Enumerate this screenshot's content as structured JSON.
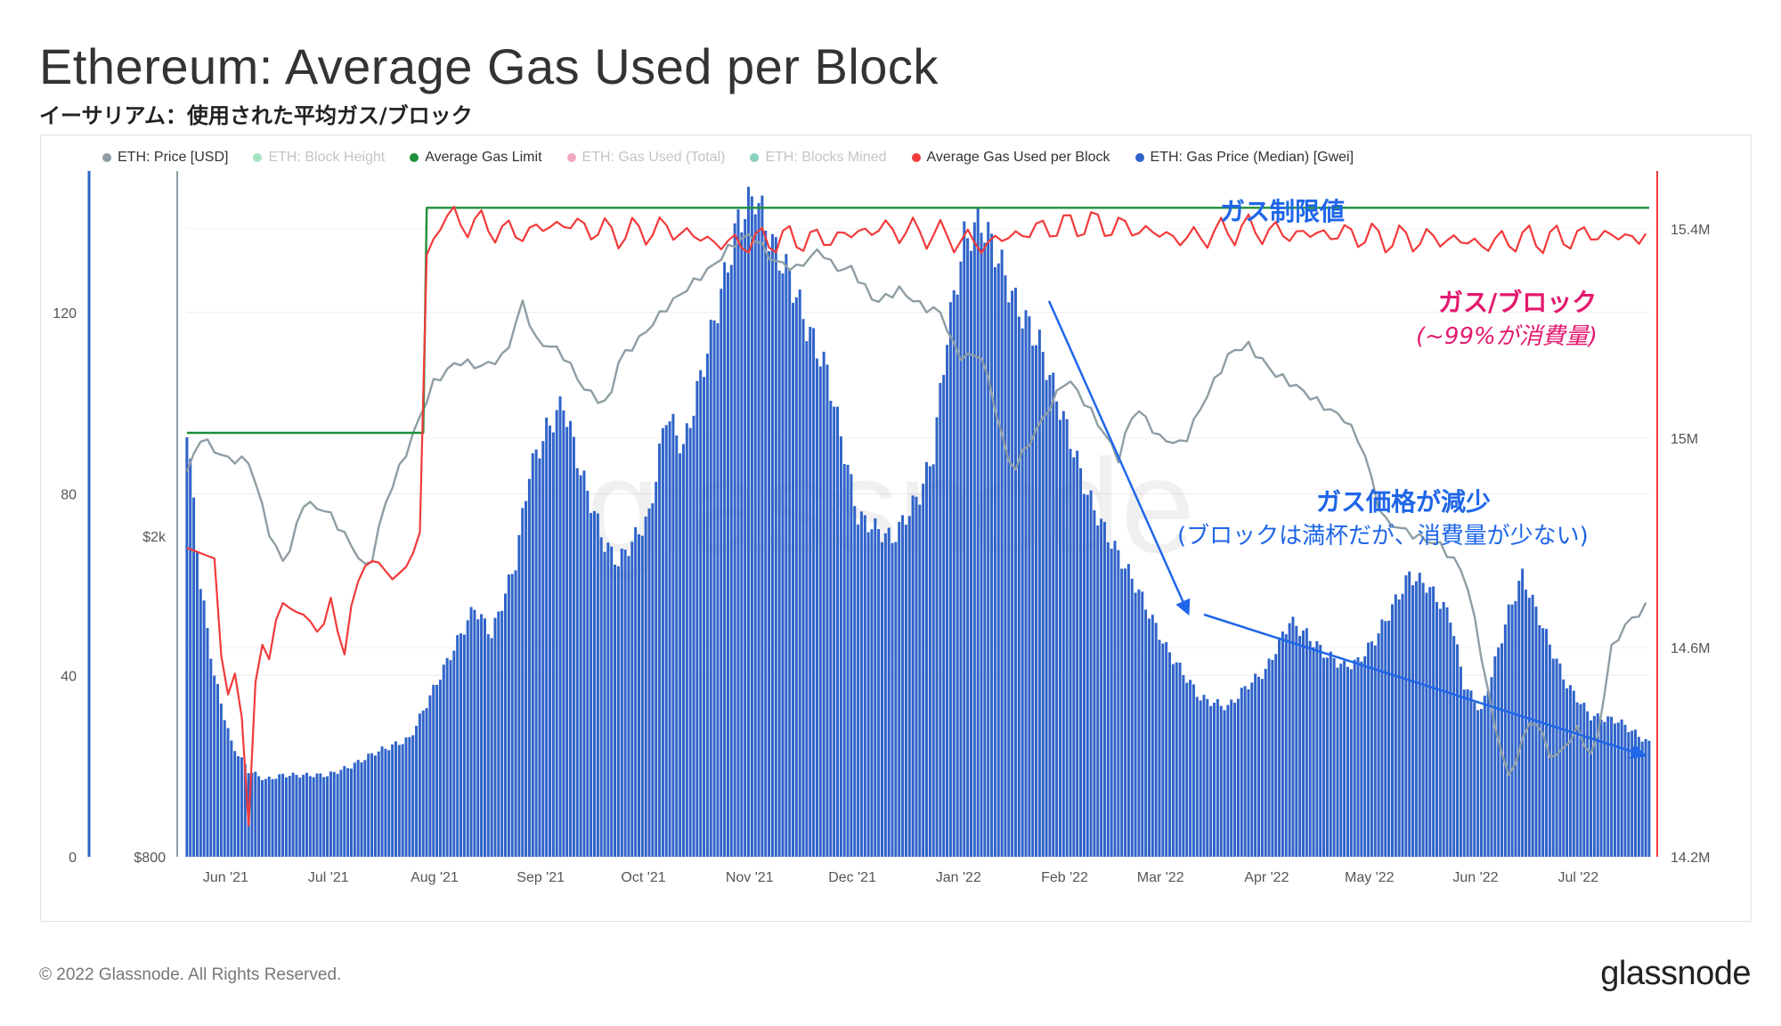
{
  "title": "Ethereum: Average Gas Used per Block",
  "subtitle": "イーサリアム：使用された平均ガス/ブロック",
  "footer": "© 2022 Glassnode. All Rights Reserved.",
  "brand": "glassnode",
  "watermark": "glassnode",
  "colors": {
    "price": "#8e9ea4",
    "block_height": "#5ad18f",
    "gas_limit": "#1e8f3a",
    "gas_used_total": "#e8608a",
    "blocks_mined": "#26a98a",
    "gas_used_per_block": "#f23a3a",
    "gas_price": "#2f63c9",
    "annotation_blue": "#1f66e8",
    "annotation_pink": "#e3196f"
  },
  "legend": [
    {
      "label": "ETH: Price [USD]",
      "color": "#8e9ea4",
      "active": true
    },
    {
      "label": "ETH: Block Height",
      "color": "#5ad18f",
      "active": false
    },
    {
      "label": "Average Gas Limit",
      "color": "#1e8f3a",
      "active": true
    },
    {
      "label": "ETH: Gas Used (Total)",
      "color": "#e8608a",
      "active": false
    },
    {
      "label": "ETH: Blocks Mined",
      "color": "#26a98a",
      "active": false
    },
    {
      "label": "Average Gas Used per Block",
      "color": "#f23a3a",
      "active": true
    },
    {
      "label": "ETH: Gas Price (Median) [Gwei]",
      "color": "#2f63c9",
      "active": true
    }
  ],
  "annotations": {
    "gas_limit": "ガス制限値",
    "gas_per_block": "ガス/ブロック",
    "gas_per_block_sub": "(~99%が消費量)",
    "gas_price_fall": "ガス価格が減少",
    "gas_price_fall_sub": "(ブロックは満杯だが、消費量が少ない)"
  },
  "chart_data": {
    "type": "line",
    "x_axis": {
      "type": "date",
      "range": [
        "2021-05-28",
        "2022-07-29"
      ],
      "ticks": [
        "Jun '21",
        "Jul '21",
        "Aug '21",
        "Sep '21",
        "Oct '21",
        "Nov '21",
        "Dec '21",
        "Jan '22",
        "Feb '22",
        "Mar '22",
        "Apr '22",
        "May '22",
        "Jun '22",
        "Jul '22"
      ]
    },
    "axes": {
      "gas_price_gwei": {
        "position": "left-outer",
        "ticks": [
          "0",
          "40",
          "80",
          "120"
        ],
        "ylim": [
          0,
          150
        ]
      },
      "price_usd": {
        "position": "left-inner",
        "scale": "log",
        "ticks": [
          "$800",
          "$2k"
        ],
        "ylim": [
          800,
          5600
        ]
      },
      "gas_per_block": {
        "position": "right",
        "ticks": [
          "14.2M",
          "14.6M",
          "15M",
          "15.4M"
        ],
        "ylim": [
          14200000,
          15500000
        ]
      }
    },
    "grid": true,
    "legend_position": "top",
    "series": [
      {
        "name": "ETH: Price [USD]",
        "axis": "price_usd",
        "kind": "line",
        "x": [
          "2021-05-28",
          "2021-06-01",
          "2021-06-08",
          "2021-06-15",
          "2021-06-22",
          "2021-06-26",
          "2021-07-01",
          "2021-07-08",
          "2021-07-15",
          "2021-07-20",
          "2021-07-25",
          "2021-08-01",
          "2021-08-08",
          "2021-08-15",
          "2021-08-22",
          "2021-08-29",
          "2021-09-03",
          "2021-09-07",
          "2021-09-14",
          "2021-09-21",
          "2021-09-28",
          "2021-10-01",
          "2021-10-08",
          "2021-10-15",
          "2021-10-22",
          "2021-10-29",
          "2021-11-03",
          "2021-11-09",
          "2021-11-15",
          "2021-11-22",
          "2021-11-29",
          "2021-12-03",
          "2021-12-08",
          "2021-12-15",
          "2021-12-22",
          "2021-12-29",
          "2022-01-03",
          "2022-01-08",
          "2022-01-15",
          "2022-01-22",
          "2022-01-24",
          "2022-02-01",
          "2022-02-09",
          "2022-02-15",
          "2022-02-24",
          "2022-03-01",
          "2022-03-08",
          "2022-03-15",
          "2022-03-22",
          "2022-03-29",
          "2022-04-03",
          "2022-04-10",
          "2022-04-18",
          "2022-04-25",
          "2022-05-01",
          "2022-05-06",
          "2022-05-12",
          "2022-05-17",
          "2022-05-22",
          "2022-05-29",
          "2022-06-05",
          "2022-06-13",
          "2022-06-18",
          "2022-06-25",
          "2022-07-01",
          "2022-07-08",
          "2022-07-13",
          "2022-07-18",
          "2022-07-22",
          "2022-07-29"
        ],
        "values": [
          2400,
          2650,
          2500,
          2480,
          1950,
          1850,
          2200,
          2150,
          1950,
          1800,
          2200,
          2600,
          3100,
          3300,
          3250,
          3350,
          3900,
          3500,
          3400,
          3050,
          2900,
          3300,
          3550,
          3850,
          4100,
          4350,
          4600,
          4750,
          4400,
          4300,
          4550,
          4300,
          4300,
          3900,
          4050,
          3850,
          3800,
          3350,
          3350,
          2550,
          2400,
          2750,
          3150,
          2900,
          2500,
          2900,
          2650,
          2600,
          3000,
          3400,
          3450,
          3200,
          3050,
          2900,
          2800,
          2600,
          2100,
          2050,
          2000,
          1950,
          1800,
          1200,
          1000,
          1200,
          1050,
          1150,
          1050,
          1450,
          1550,
          1650
        ]
      },
      {
        "name": "Average Gas Limit",
        "axis": "gas_per_block",
        "kind": "step",
        "x": [
          "2021-05-28",
          "2021-08-05",
          "2021-08-06",
          "2022-07-29"
        ],
        "values": [
          15010000,
          15010000,
          15440000,
          15440000
        ]
      },
      {
        "name": "Average Gas Used per Block",
        "axis": "gas_per_block",
        "kind": "line",
        "x": [
          "2021-05-28",
          "2021-06-01",
          "2021-06-05",
          "2021-06-08",
          "2021-06-12",
          "2021-06-15",
          "2021-06-18",
          "2021-06-20",
          "2021-06-24",
          "2021-06-28",
          "2021-07-02",
          "2021-07-06",
          "2021-07-10",
          "2021-07-12",
          "2021-07-15",
          "2021-07-18",
          "2021-07-22",
          "2021-07-27",
          "2021-08-01",
          "2021-08-04",
          "2021-08-06",
          "2021-08-10",
          "2021-08-20",
          "2021-09-01",
          "2021-09-15",
          "2021-10-01",
          "2021-10-15",
          "2021-11-01",
          "2021-11-15",
          "2021-12-01",
          "2021-12-15",
          "2022-01-01",
          "2022-01-15",
          "2022-02-01",
          "2022-02-15",
          "2022-03-01",
          "2022-03-15",
          "2022-04-01",
          "2022-04-15",
          "2022-05-01",
          "2022-05-15",
          "2022-06-01",
          "2022-06-10",
          "2022-06-20",
          "2022-07-01",
          "2022-07-15",
          "2022-07-25",
          "2022-07-29"
        ],
        "values": [
          14790000,
          14780000,
          14770000,
          14490000,
          14570000,
          14260000,
          14670000,
          14540000,
          14690000,
          14670000,
          14660000,
          14620000,
          14720000,
          14540000,
          14680000,
          14750000,
          14770000,
          14730000,
          14760000,
          14820000,
          15350000,
          15420000,
          15410000,
          15390000,
          15410000,
          15390000,
          15400000,
          15370000,
          15380000,
          15380000,
          15400000,
          15390000,
          15370000,
          15400000,
          15410000,
          15400000,
          15380000,
          15400000,
          15390000,
          15390000,
          15380000,
          15380000,
          15370000,
          15380000,
          15380000,
          15390000,
          15380000,
          15400000
        ]
      },
      {
        "name": "ETH: Gas Price (Median) [Gwei]",
        "axis": "gas_price_gwei",
        "kind": "bar",
        "x": [
          "2021-05-28",
          "2021-06-01",
          "2021-06-05",
          "2021-06-10",
          "2021-06-15",
          "2021-06-20",
          "2021-06-25",
          "2021-07-01",
          "2021-07-08",
          "2021-07-15",
          "2021-07-22",
          "2021-08-01",
          "2021-08-10",
          "2021-08-20",
          "2021-08-25",
          "2021-09-01",
          "2021-09-05",
          "2021-09-10",
          "2021-09-15",
          "2021-09-20",
          "2021-09-27",
          "2021-10-01",
          "2021-10-10",
          "2021-10-15",
          "2021-10-20",
          "2021-10-28",
          "2021-11-05",
          "2021-11-10",
          "2021-11-15",
          "2021-11-20",
          "2021-11-25",
          "2021-12-01",
          "2021-12-10",
          "2021-12-20",
          "2021-12-28",
          "2022-01-01",
          "2022-01-05",
          "2022-01-10",
          "2022-01-15",
          "2022-01-20",
          "2022-01-25",
          "2022-02-01",
          "2022-02-10",
          "2022-02-15",
          "2022-02-20",
          "2022-03-01",
          "2022-03-10",
          "2022-03-20",
          "2022-03-28",
          "2022-04-03",
          "2022-04-08",
          "2022-04-15",
          "2022-04-20",
          "2022-04-25",
          "2022-05-01",
          "2022-05-05",
          "2022-05-10",
          "2022-05-15",
          "2022-05-20",
          "2022-05-25",
          "2022-06-01",
          "2022-06-05",
          "2022-06-10",
          "2022-06-18",
          "2022-06-22",
          "2022-07-01",
          "2022-07-05",
          "2022-07-12",
          "2022-07-20",
          "2022-07-29"
        ],
        "values": [
          95,
          60,
          40,
          25,
          19,
          17,
          18,
          18,
          18,
          20,
          23,
          26,
          40,
          55,
          49,
          65,
          85,
          94,
          100,
          85,
          69,
          65,
          75,
          98,
          90,
          115,
          140,
          146,
          135,
          128,
          117,
          107,
          75,
          70,
          80,
          89,
          115,
          136,
          140,
          132,
          122,
          113,
          92,
          80,
          72,
          60,
          46,
          35,
          33,
          38,
          41,
          52,
          49,
          45,
          42,
          43,
          48,
          55,
          62,
          60,
          53,
          38,
          32,
          54,
          62,
          45,
          38,
          31,
          30,
          25
        ]
      }
    ]
  }
}
